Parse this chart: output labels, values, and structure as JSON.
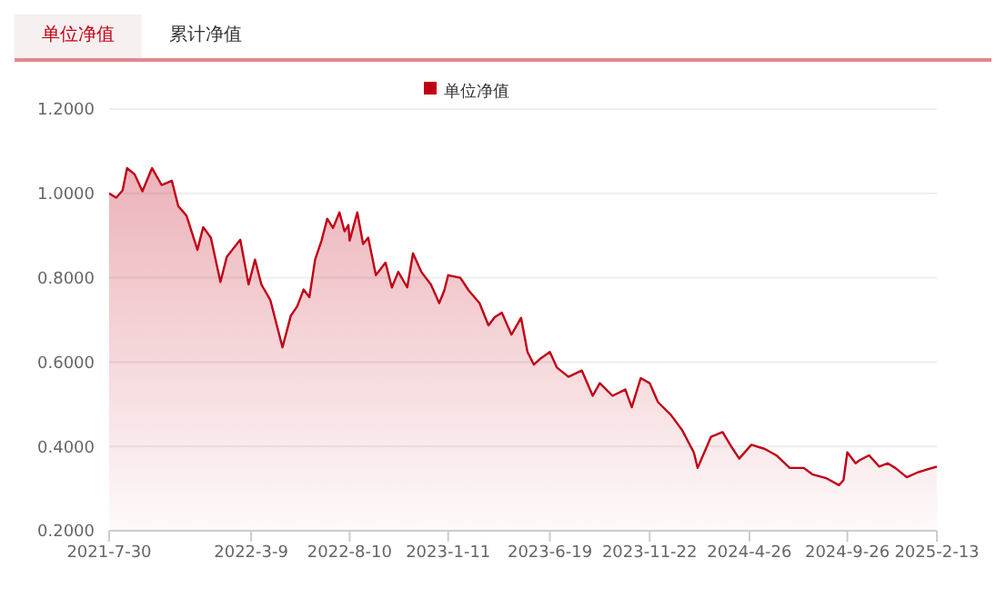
{
  "chart_data": {
    "type": "area",
    "annotations": [
      "单位净值",
      "累计净值"
    ],
    "x": [
      "2021-07-30",
      "2021-08-10",
      "2021-08-20",
      "2021-08-27",
      "2021-09-08",
      "2021-09-20",
      "2021-10-05",
      "2021-10-20",
      "2021-11-05",
      "2021-11-15",
      "2021-11-28",
      "2021-12-15",
      "2021-12-24",
      "2022-01-05",
      "2022-01-20",
      "2022-01-30",
      "2022-02-20",
      "2022-03-05",
      "2022-03-15",
      "2022-03-25",
      "2022-04-08",
      "2022-04-27",
      "2022-05-10",
      "2022-05-20",
      "2022-05-30",
      "2022-06-08",
      "2022-06-17",
      "2022-06-27",
      "2022-07-06",
      "2022-07-15",
      "2022-07-25",
      "2022-08-02",
      "2022-08-08",
      "2022-08-10",
      "2022-08-22",
      "2022-08-31",
      "2022-09-08",
      "2022-09-20",
      "2022-10-05",
      "2022-10-15",
      "2022-10-25",
      "2022-11-08",
      "2022-11-17",
      "2022-11-30",
      "2022-12-15",
      "2022-12-28",
      "2023-01-05",
      "2023-01-11",
      "2023-01-30",
      "2023-02-12",
      "2023-03-01",
      "2023-03-15",
      "2023-03-25",
      "2023-04-05",
      "2023-04-20",
      "2023-05-05",
      "2023-05-15",
      "2023-05-25",
      "2023-06-05",
      "2023-06-19",
      "2023-06-30",
      "2023-07-18",
      "2023-08-08",
      "2023-08-25",
      "2023-09-05",
      "2023-09-25",
      "2023-10-15",
      "2023-10-25",
      "2023-11-08",
      "2023-11-22",
      "2023-12-05",
      "2023-12-25",
      "2024-01-12",
      "2024-01-30",
      "2024-02-05",
      "2024-02-26",
      "2024-03-15",
      "2024-03-28",
      "2024-04-10",
      "2024-04-29",
      "2024-05-20",
      "2024-06-07",
      "2024-06-28",
      "2024-07-20",
      "2024-08-02",
      "2024-08-25",
      "2024-09-13",
      "2024-09-20",
      "2024-09-26",
      "2024-10-09",
      "2024-10-15",
      "2024-10-30",
      "2024-11-15",
      "2024-11-28",
      "2024-12-10",
      "2024-12-28",
      "2025-01-15",
      "2025-02-13"
    ],
    "series": [
      {
        "name": "单位净值",
        "color": "#c00016",
        "values": [
          1.0,
          0.99,
          1.007,
          1.06,
          1.045,
          1.005,
          1.06,
          1.02,
          1.03,
          0.97,
          0.947,
          0.866,
          0.92,
          0.895,
          0.79,
          0.85,
          0.89,
          0.784,
          0.843,
          0.784,
          0.747,
          0.635,
          0.71,
          0.732,
          0.772,
          0.754,
          0.843,
          0.888,
          0.94,
          0.918,
          0.955,
          0.91,
          0.925,
          0.888,
          0.955,
          0.88,
          0.895,
          0.806,
          0.836,
          0.777,
          0.814,
          0.777,
          0.858,
          0.814,
          0.784,
          0.74,
          0.77,
          0.806,
          0.8,
          0.77,
          0.74,
          0.687,
          0.707,
          0.717,
          0.665,
          0.705,
          0.624,
          0.594,
          0.609,
          0.624,
          0.587,
          0.565,
          0.58,
          0.52,
          0.55,
          0.52,
          0.535,
          0.493,
          0.562,
          0.55,
          0.505,
          0.475,
          0.438,
          0.386,
          0.349,
          0.423,
          0.434,
          0.401,
          0.371,
          0.404,
          0.394,
          0.379,
          0.349,
          0.349,
          0.334,
          0.324,
          0.308,
          0.32,
          0.386,
          0.36,
          0.367,
          0.379,
          0.352,
          0.36,
          0.349,
          0.327,
          0.339,
          0.352
        ]
      }
    ],
    "xlim": [
      "2021-07-30",
      "2025-02-13"
    ],
    "xticks": [
      {
        "value": "2021-07-30",
        "label": "2021-7-30"
      },
      {
        "value": "2022-03-09",
        "label": "2022-3-9"
      },
      {
        "value": "2022-08-10",
        "label": "2022-8-10"
      },
      {
        "value": "2023-01-11",
        "label": "2023-1-11"
      },
      {
        "value": "2023-06-19",
        "label": "2023-6-19"
      },
      {
        "value": "2023-11-22",
        "label": "2023-11-22"
      },
      {
        "value": "2024-04-26",
        "label": "2024-4-26"
      },
      {
        "value": "2024-09-26",
        "label": "2024-9-26"
      },
      {
        "value": "2025-02-13",
        "label": "2025-2-13"
      }
    ],
    "ylim": [
      0.2,
      1.2
    ],
    "yticks": [
      {
        "value": 0.2,
        "label": "0.2000"
      },
      {
        "value": 0.4,
        "label": "0.4000"
      },
      {
        "value": 0.6,
        "label": "0.6000"
      },
      {
        "value": 0.8,
        "label": "0.8000"
      },
      {
        "value": 1.0,
        "label": "1.0000"
      },
      {
        "value": 1.2,
        "label": "1.2000"
      }
    ],
    "grid": "y",
    "legend": "top",
    "marker": "none",
    "line_style": "solid"
  }
}
